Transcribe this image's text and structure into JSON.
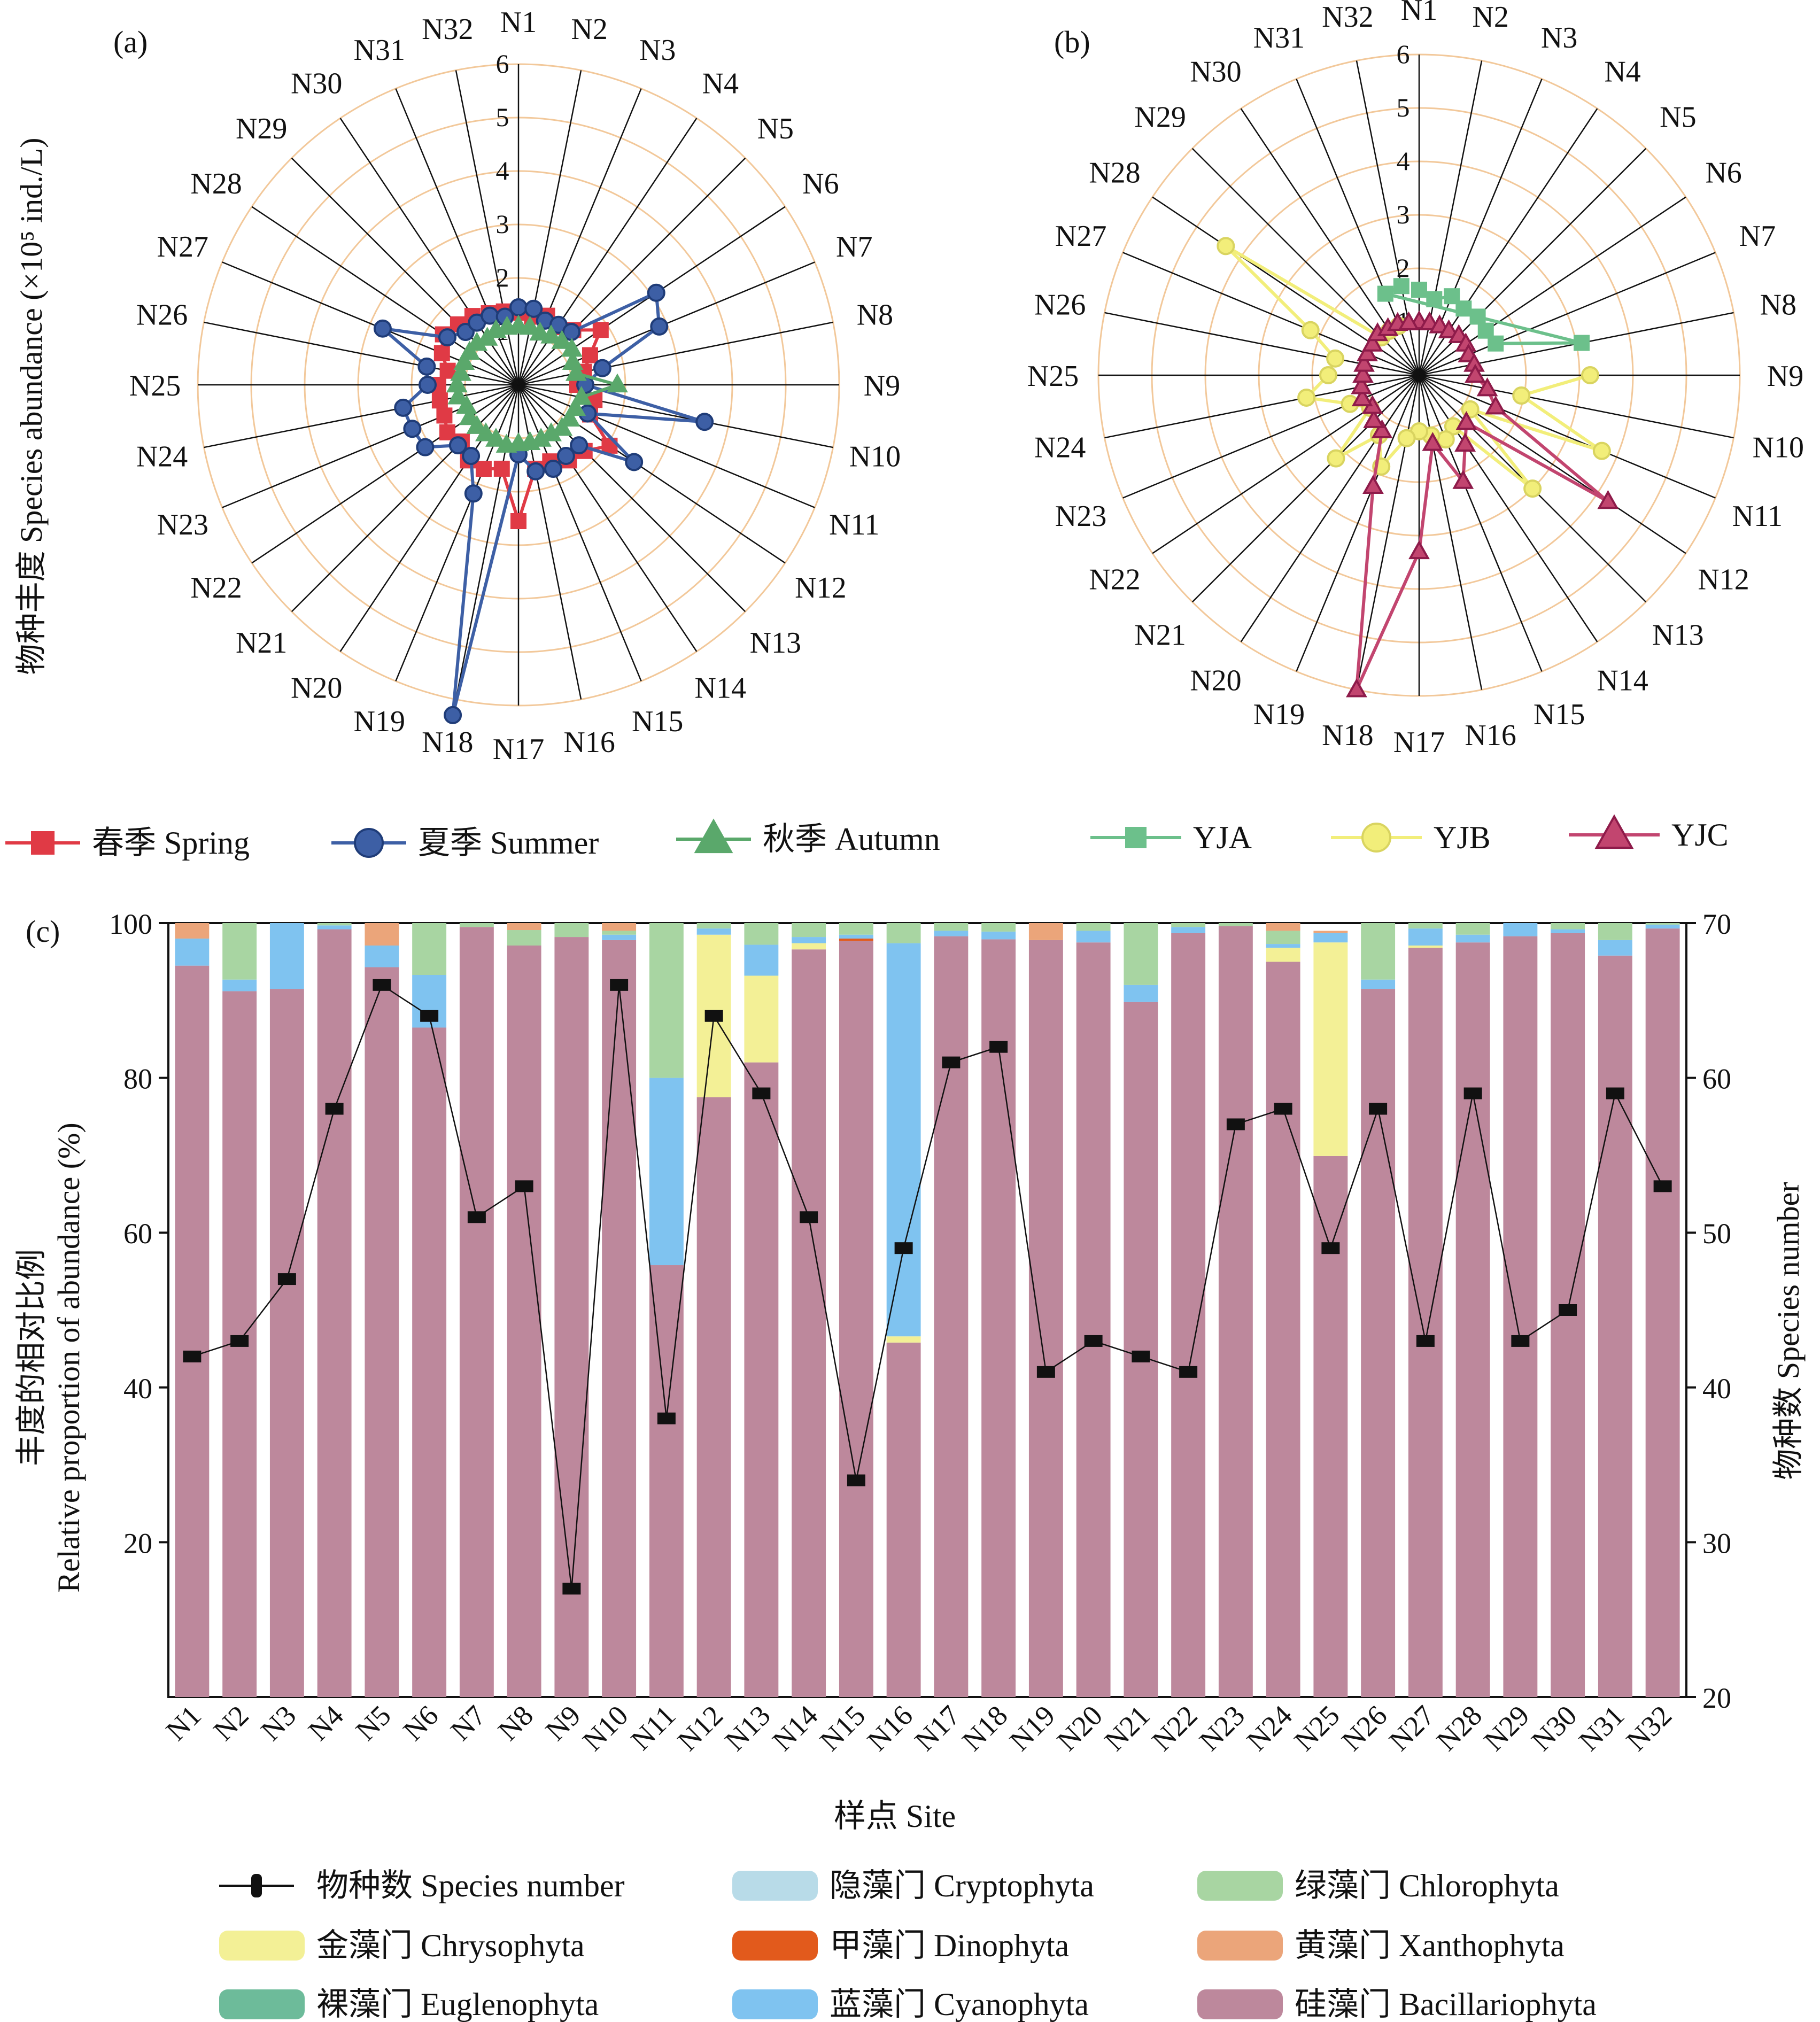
{
  "panels": {
    "a": {
      "label": "(a)"
    },
    "b": {
      "label": "(b)"
    },
    "c": {
      "label": "(c)"
    }
  },
  "radar_ylabel": "物种丰度 Species abundance (×10⁵ ind./L)",
  "bar_ylabel_cn": "丰度的相对比例",
  "bar_ylabel_en": "Relative proportion of abundance (%)",
  "bar_y2label": "物种数 Species number",
  "bar_xlabel": "样点 Site",
  "colors": {
    "spring": "#e03a45",
    "summer": "#3d5fa5",
    "autumn": "#5aa86b",
    "yja": "#6cc08b",
    "yjb": "#f2ee7a",
    "yjc": "#c2456f",
    "Cryptophyta": "#b8dbe8",
    "Chlorophyta": "#a8d5a2",
    "Chrysophyta": "#f3f096",
    "Dinophyta": "#e25a1c",
    "Xanthophyta": "#eba57a",
    "Euglenophyta": "#6dbb9a",
    "Cyanophyta": "#7fc3f0",
    "Bacillariophyta": "#bd889c",
    "ring": "#f2c89a",
    "species_line": "#111111"
  },
  "chart_data": [
    {
      "type": "radar",
      "panel": "a",
      "categories": [
        "N1",
        "N2",
        "N3",
        "N4",
        "N5",
        "N6",
        "N7",
        "N8",
        "N9",
        "N10",
        "N11",
        "N12",
        "N13",
        "N14",
        "N15",
        "N16",
        "N17",
        "N18",
        "N19",
        "N20",
        "N21",
        "N22",
        "N23",
        "N24",
        "N25",
        "N26",
        "N27",
        "N28",
        "N29",
        "N30",
        "N31",
        "N32"
      ],
      "rlim": [
        0,
        6
      ],
      "rticks": [
        "1",
        "2",
        "3",
        "4",
        "5",
        "6"
      ],
      "series": [
        {
          "name": "春季 Spring",
          "key": "spring",
          "marker": "square",
          "values": [
            1.35,
            1.3,
            1.4,
            1.3,
            1.45,
            1.85,
            1.45,
            1.25,
            1.1,
            1.45,
            1.45,
            2.05,
            1.75,
            1.7,
            1.55,
            1.6,
            2.55,
            1.6,
            1.7,
            1.7,
            1.5,
            1.6,
            1.5,
            1.5,
            1.5,
            1.35,
            1.55,
            1.7,
            1.6,
            1.55,
            1.45,
            1.4
          ]
        },
        {
          "name": "夏季 Summer",
          "key": "summer",
          "marker": "circle",
          "values": [
            1.45,
            1.45,
            1.3,
            1.35,
            1.4,
            3.1,
            2.85,
            1.6,
            1.25,
            3.55,
            1.4,
            2.6,
            1.6,
            1.6,
            1.7,
            1.65,
            1.3,
            6.3,
            2.2,
            1.6,
            1.6,
            2.1,
            2.15,
            2.2,
            1.7,
            1.75,
            2.75,
            1.6,
            1.4,
            1.4,
            1.4,
            1.3
          ]
        },
        {
          "name": "秋季 Autumn",
          "key": "autumn",
          "marker": "triangle",
          "values": [
            1.1,
            1.1,
            1.05,
            1.1,
            1.15,
            1.2,
            1.1,
            1.1,
            1.85,
            1.2,
            1.15,
            1.15,
            1.15,
            1.1,
            1.1,
            1.1,
            1.1,
            1.15,
            1.1,
            1.1,
            1.1,
            1.1,
            1.05,
            1.15,
            1.15,
            1.1,
            1.1,
            1.1,
            1.1,
            1.05,
            1.1,
            1.1
          ]
        }
      ]
    },
    {
      "type": "radar",
      "panel": "b",
      "categories": [
        "N1",
        "N2",
        "N3",
        "N4",
        "N5",
        "N6",
        "N7",
        "N8",
        "N9",
        "N10",
        "N11",
        "N12",
        "N13",
        "N14",
        "N15",
        "N16",
        "N17",
        "N18",
        "N19",
        "N20",
        "N21",
        "N22",
        "N23",
        "N24",
        "N25",
        "N26",
        "N27",
        "N28",
        "N29",
        "N30",
        "N31",
        "N32"
      ],
      "rlim": [
        0,
        6
      ],
      "rticks": [
        "1",
        "2",
        "3",
        "4",
        "5",
        "6"
      ],
      "series": [
        {
          "name": "YJA",
          "key": "yja",
          "marker": "square",
          "values": [
            1.6,
            1.45,
            1.6,
            1.5,
            1.55,
            1.5,
            1.55,
            3.1,
            null,
            null,
            null,
            null,
            null,
            null,
            null,
            null,
            null,
            null,
            null,
            null,
            null,
            null,
            null,
            null,
            null,
            null,
            null,
            null,
            null,
            null,
            1.65,
            1.7
          ]
        },
        {
          "name": "YJB",
          "key": "yjb",
          "marker": "circle",
          "values": [
            null,
            null,
            null,
            null,
            null,
            null,
            null,
            null,
            3.2,
            1.95,
            3.7,
            1.15,
            3.0,
            1.15,
            1.3,
            1.15,
            1.05,
            1.2,
            1.85,
            1.35,
            2.2,
            1.1,
            1.4,
            2.15,
            1.7,
            1.6,
            2.2,
            4.35,
            1.0,
            1.0,
            1.0,
            null
          ]
        },
        {
          "name": "YJC",
          "key": "yjc",
          "marker": "triangle",
          "values": [
            1.0,
            1.0,
            1.0,
            1.0,
            1.05,
            1.05,
            1.0,
            1.05,
            1.05,
            1.3,
            1.55,
            4.25,
            1.25,
            1.55,
            2.15,
            1.3,
            3.3,
            6.0,
            2.25,
            1.25,
            1.2,
            1.05,
            1.15,
            1.1,
            1.05,
            1.05,
            1.05,
            1.05,
            1.1,
            1.05,
            1.05,
            1.0
          ]
        }
      ]
    },
    {
      "type": "bar",
      "panel": "c",
      "stacked": true,
      "categories": [
        "N1",
        "N2",
        "N3",
        "N4",
        "N5",
        "N6",
        "N7",
        "N8",
        "N9",
        "N10",
        "N11",
        "N12",
        "N13",
        "N14",
        "N15",
        "N16",
        "N17",
        "N18",
        "N19",
        "N20",
        "N21",
        "N22",
        "N23",
        "N24",
        "N25",
        "N26",
        "N27",
        "N28",
        "N29",
        "N30",
        "N31",
        "N32"
      ],
      "ylim": [
        0,
        100
      ],
      "yticks": [
        20,
        40,
        60,
        80,
        100
      ],
      "y2lim": [
        20,
        70
      ],
      "y2ticks": [
        20,
        30,
        40,
        50,
        60,
        70
      ],
      "series": [
        {
          "name": "硅藻门 Bacillariophyta",
          "key": "Bacillariophyta",
          "values": [
            94.5,
            91.2,
            91.5,
            99.2,
            94.3,
            86.5,
            99.5,
            97.1,
            98.2,
            97.8,
            55.8,
            77.5,
            82.0,
            96.6,
            97.7,
            45.8,
            98.3,
            97.9,
            97.8,
            97.5,
            89.8,
            98.7,
            99.6,
            95.0,
            69.9,
            91.5,
            96.8,
            97.5,
            98.3,
            98.7,
            95.8,
            99.3
          ]
        },
        {
          "name": "金藻门 Chrysophyta",
          "key": "Chrysophyta",
          "values": [
            0,
            0,
            0,
            0,
            0,
            0,
            0,
            0,
            0,
            0,
            0,
            21.0,
            11.2,
            0.8,
            0,
            0.8,
            0,
            0,
            0,
            0,
            0,
            0,
            0,
            1.8,
            27.6,
            0,
            0.3,
            0,
            0,
            0,
            0,
            0
          ]
        },
        {
          "name": "裸藻门 Euglenophyta",
          "key": "Euglenophyta",
          "values": [
            0,
            0,
            0,
            0,
            0,
            0,
            0,
            0,
            0,
            0,
            0,
            0,
            0,
            0,
            0,
            0,
            0,
            0,
            0,
            0,
            0,
            0,
            0,
            0,
            0,
            0,
            0,
            0,
            0,
            0,
            0,
            0
          ]
        },
        {
          "name": "隐藻门 Cryptophyta",
          "key": "Cryptophyta",
          "values": [
            0,
            0,
            0,
            0,
            0,
            0,
            0,
            0,
            0,
            0,
            0,
            0,
            0,
            0,
            0,
            0,
            0,
            0,
            0,
            0,
            0,
            0,
            0,
            0,
            0,
            0,
            0,
            0,
            0,
            0,
            0,
            0
          ]
        },
        {
          "name": "甲藻门 Dinophyta",
          "key": "Dinophyta",
          "values": [
            0,
            0,
            0,
            0,
            0,
            0,
            0,
            0,
            0,
            0,
            0,
            0,
            0,
            0,
            0.3,
            0,
            0,
            0,
            0,
            0,
            0,
            0,
            0,
            0,
            0,
            0,
            0,
            0,
            0,
            0,
            0,
            0
          ]
        },
        {
          "name": "蓝藻门 Cyanophyta",
          "key": "Cyanophyta",
          "values": [
            3.5,
            1.5,
            8.5,
            0.5,
            2.8,
            6.8,
            0,
            0,
            0,
            0.7,
            24.2,
            0.8,
            4.0,
            0.8,
            0.5,
            50.8,
            0.7,
            1.0,
            0,
            1.5,
            2.2,
            0.8,
            0,
            0.5,
            1.2,
            1.2,
            2.2,
            1.0,
            1.7,
            0.5,
            2.0,
            0.5
          ]
        },
        {
          "name": "绿藻门 Chlorophyta",
          "key": "Chlorophyta",
          "values": [
            0,
            7.3,
            0,
            0.3,
            0,
            6.7,
            0.5,
            2.0,
            1.8,
            0.5,
            20.0,
            0.7,
            2.8,
            1.8,
            1.5,
            2.6,
            1.0,
            1.1,
            0,
            1.0,
            8.0,
            0.5,
            0.4,
            1.7,
            0,
            7.3,
            0.7,
            1.5,
            0,
            0.8,
            2.2,
            0.2
          ]
        },
        {
          "name": "黄藻门 Xanthophyta",
          "key": "Xanthophyta",
          "values": [
            2.0,
            0,
            0,
            0,
            2.9,
            0,
            0,
            0.9,
            0,
            1.0,
            0,
            0,
            0,
            0,
            0,
            0,
            0,
            0,
            2.2,
            0,
            0,
            0,
            0,
            1.0,
            0.3,
            0,
            0,
            0,
            0,
            0,
            0,
            0
          ]
        }
      ],
      "line": {
        "name": "物种数 Species number",
        "axis": "right",
        "values": [
          42,
          43,
          47,
          58,
          66,
          64,
          51,
          53,
          27,
          66,
          38,
          64,
          59,
          51,
          34,
          49,
          61,
          62,
          41,
          43,
          42,
          41,
          57,
          58,
          49,
          58,
          43,
          59,
          43,
          45,
          59,
          53
        ]
      }
    }
  ],
  "legend_a": [
    {
      "label": "春季 Spring",
      "key": "spring",
      "marker": "square"
    },
    {
      "label": "夏季 Summer",
      "key": "summer",
      "marker": "circle"
    },
    {
      "label": "秋季 Autumn",
      "key": "autumn",
      "marker": "triangle"
    }
  ],
  "legend_b": [
    {
      "label": "YJA",
      "key": "yja",
      "marker": "square"
    },
    {
      "label": "YJB",
      "key": "yjb",
      "marker": "circle"
    },
    {
      "label": "YJC",
      "key": "yjc",
      "marker": "triangle"
    }
  ],
  "legend_c": [
    {
      "label": "物种数 Species number",
      "key": "species_line",
      "kind": "line"
    },
    {
      "label": "隐藻门 Cryptophyta",
      "key": "Cryptophyta",
      "kind": "box"
    },
    {
      "label": "绿藻门 Chlorophyta",
      "key": "Chlorophyta",
      "kind": "box"
    },
    {
      "label": "金藻门 Chrysophyta",
      "key": "Chrysophyta",
      "kind": "box"
    },
    {
      "label": "甲藻门 Dinophyta",
      "key": "Dinophyta",
      "kind": "box"
    },
    {
      "label": "黄藻门 Xanthophyta",
      "key": "Xanthophyta",
      "kind": "box"
    },
    {
      "label": "裸藻门 Euglenophyta",
      "key": "Euglenophyta",
      "kind": "box"
    },
    {
      "label": "蓝藻门 Cyanophyta",
      "key": "Cyanophyta",
      "kind": "box"
    },
    {
      "label": "硅藻门 Bacillariophyta",
      "key": "Bacillariophyta",
      "kind": "box"
    }
  ]
}
